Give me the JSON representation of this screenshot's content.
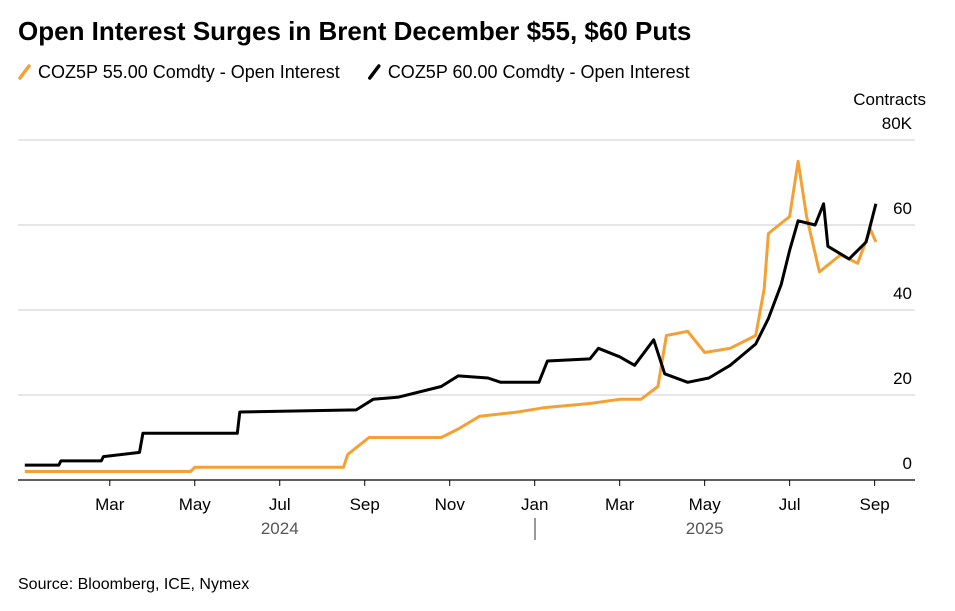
{
  "chart_data": {
    "type": "line",
    "title": "Open Interest Surges in Brent December $55, $60 Puts",
    "y_label": "Contracts",
    "source": "Source: Bloomberg, ICE, Nymex",
    "xlim": [
      -0.16,
      20.95
    ],
    "xticks": [
      {
        "value": 2,
        "label": "Mar"
      },
      {
        "value": 4,
        "label": "May"
      },
      {
        "value": 6,
        "label": "Jul"
      },
      {
        "value": 8,
        "label": "Sep"
      },
      {
        "value": 10,
        "label": "Nov"
      },
      {
        "value": 12,
        "label": "Jan"
      },
      {
        "value": 14,
        "label": "Mar"
      },
      {
        "value": 16,
        "label": "May"
      },
      {
        "value": 18,
        "label": "Jul"
      },
      {
        "value": 20,
        "label": "Sep"
      }
    ],
    "year_labels": [
      {
        "value": 6,
        "label": "2024"
      },
      {
        "value": 16,
        "label": "2025"
      }
    ],
    "ylim": [
      0,
      80
    ],
    "yticks": [
      0,
      20,
      40,
      60,
      {
        "value": 80,
        "label": "80K"
      }
    ],
    "grid": true,
    "series": [
      {
        "name": "COZ5P 55.00 Comdty - Open Interest",
        "color": "#f5a033",
        "x": [
          0,
          3.9,
          4.0,
          7.5,
          7.6,
          8.1,
          8.8,
          9.8,
          10.2,
          10.7,
          11.6,
          12.2,
          13.3,
          14.0,
          14.5,
          14.9,
          15.1,
          15.6,
          16.0,
          16.6,
          17.2,
          17.4,
          17.5,
          18.0,
          18.2,
          18.4,
          18.7,
          19.2,
          19.6,
          19.9,
          20.03
        ],
        "values": [
          2,
          2,
          3,
          3,
          6,
          10,
          10,
          10,
          12,
          15,
          16,
          17,
          18,
          19,
          19,
          22,
          34,
          35,
          30,
          31,
          34,
          45,
          58,
          62,
          75,
          62,
          49,
          53,
          51,
          59,
          56
        ]
      },
      {
        "name": "COZ5P 60.00 Comdty - Open Interest",
        "color": "#000000",
        "x": [
          0,
          0.8,
          0.85,
          1.8,
          1.85,
          2.7,
          2.78,
          5.0,
          5.06,
          7.8,
          8.2,
          8.8,
          9.8,
          10.2,
          10.9,
          11.2,
          12.1,
          12.3,
          13.3,
          13.5,
          14.0,
          14.35,
          14.8,
          15.06,
          15.6,
          16.1,
          16.6,
          17.2,
          17.5,
          17.8,
          18.0,
          18.2,
          18.6,
          18.8,
          18.9,
          19.4,
          19.8,
          20.03
        ],
        "values": [
          3.5,
          3.5,
          4.5,
          4.5,
          5.5,
          6.5,
          11,
          11,
          16,
          16.5,
          19,
          19.5,
          22,
          24.5,
          24,
          23,
          23,
          28,
          28.5,
          31,
          29,
          27,
          33,
          25,
          23,
          24,
          27,
          32,
          38,
          46,
          54,
          61,
          60,
          65,
          55,
          52,
          56,
          65
        ]
      }
    ]
  }
}
